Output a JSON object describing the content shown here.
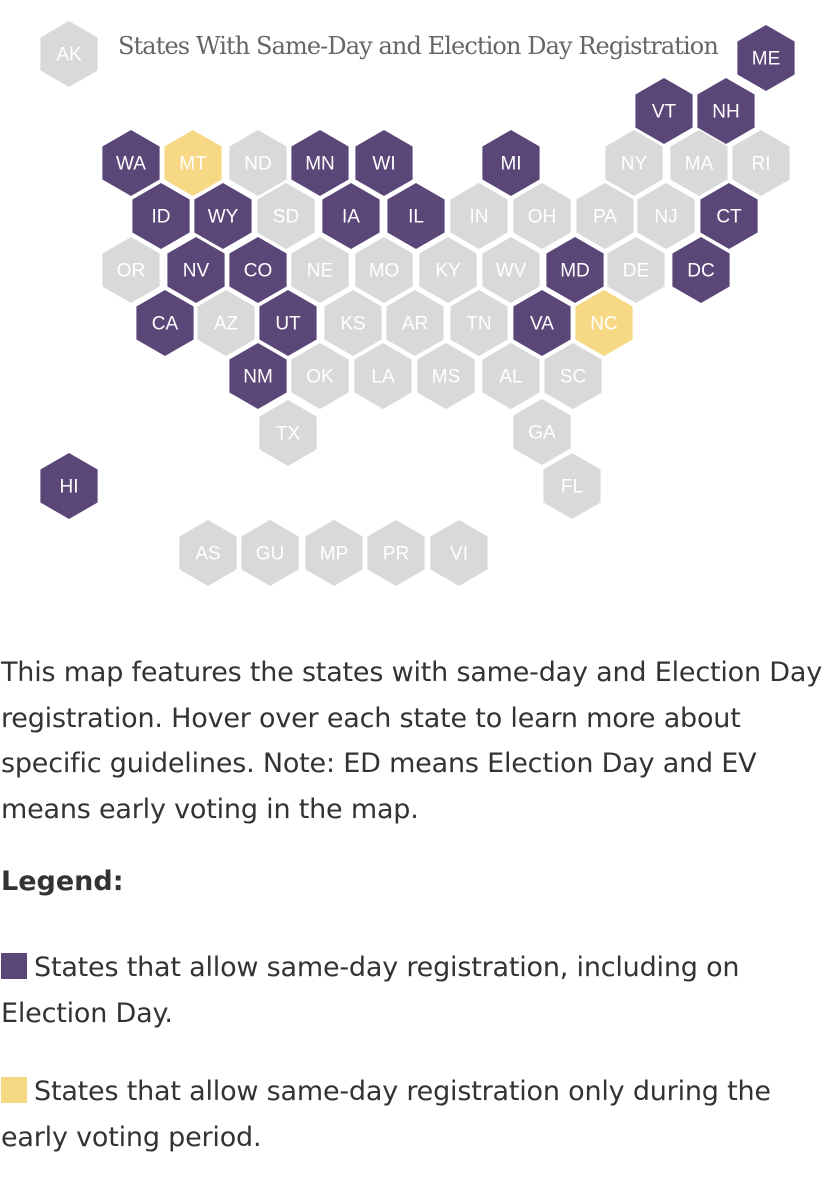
{
  "map": {
    "title": "States With Same-Day and Election Day Registration",
    "colors": {
      "same_day": "#5b4678",
      "early_voting_only": "#f7d885",
      "none": "#d9d9d9",
      "label_on_dark": "#ffffff",
      "label_on_light": "#ffffff"
    },
    "states": [
      {
        "abbr": "AK",
        "cat": "none"
      },
      {
        "abbr": "ME",
        "cat": "same_day"
      },
      {
        "abbr": "VT",
        "cat": "same_day"
      },
      {
        "abbr": "NH",
        "cat": "same_day"
      },
      {
        "abbr": "WA",
        "cat": "same_day"
      },
      {
        "abbr": "MT",
        "cat": "early_voting_only"
      },
      {
        "abbr": "ND",
        "cat": "none"
      },
      {
        "abbr": "MN",
        "cat": "same_day"
      },
      {
        "abbr": "WI",
        "cat": "same_day"
      },
      {
        "abbr": "MI",
        "cat": "same_day"
      },
      {
        "abbr": "NY",
        "cat": "none"
      },
      {
        "abbr": "MA",
        "cat": "none"
      },
      {
        "abbr": "RI",
        "cat": "none"
      },
      {
        "abbr": "ID",
        "cat": "same_day"
      },
      {
        "abbr": "WY",
        "cat": "same_day"
      },
      {
        "abbr": "SD",
        "cat": "none"
      },
      {
        "abbr": "IA",
        "cat": "same_day"
      },
      {
        "abbr": "IL",
        "cat": "same_day"
      },
      {
        "abbr": "IN",
        "cat": "none"
      },
      {
        "abbr": "OH",
        "cat": "none"
      },
      {
        "abbr": "PA",
        "cat": "none"
      },
      {
        "abbr": "NJ",
        "cat": "none"
      },
      {
        "abbr": "CT",
        "cat": "same_day"
      },
      {
        "abbr": "OR",
        "cat": "none"
      },
      {
        "abbr": "NV",
        "cat": "same_day"
      },
      {
        "abbr": "CO",
        "cat": "same_day"
      },
      {
        "abbr": "NE",
        "cat": "none"
      },
      {
        "abbr": "MO",
        "cat": "none"
      },
      {
        "abbr": "KY",
        "cat": "none"
      },
      {
        "abbr": "WV",
        "cat": "none"
      },
      {
        "abbr": "MD",
        "cat": "same_day"
      },
      {
        "abbr": "DE",
        "cat": "none"
      },
      {
        "abbr": "DC",
        "cat": "same_day"
      },
      {
        "abbr": "CA",
        "cat": "same_day"
      },
      {
        "abbr": "AZ",
        "cat": "none"
      },
      {
        "abbr": "UT",
        "cat": "same_day"
      },
      {
        "abbr": "KS",
        "cat": "none"
      },
      {
        "abbr": "AR",
        "cat": "none"
      },
      {
        "abbr": "TN",
        "cat": "none"
      },
      {
        "abbr": "VA",
        "cat": "same_day"
      },
      {
        "abbr": "NC",
        "cat": "early_voting_only"
      },
      {
        "abbr": "NM",
        "cat": "same_day"
      },
      {
        "abbr": "OK",
        "cat": "none"
      },
      {
        "abbr": "LA",
        "cat": "none"
      },
      {
        "abbr": "MS",
        "cat": "none"
      },
      {
        "abbr": "AL",
        "cat": "none"
      },
      {
        "abbr": "SC",
        "cat": "none"
      },
      {
        "abbr": "TX",
        "cat": "none"
      },
      {
        "abbr": "GA",
        "cat": "none"
      },
      {
        "abbr": "HI",
        "cat": "same_day"
      },
      {
        "abbr": "FL",
        "cat": "none"
      },
      {
        "abbr": "AS",
        "cat": "none"
      },
      {
        "abbr": "GU",
        "cat": "none"
      },
      {
        "abbr": "MP",
        "cat": "none"
      },
      {
        "abbr": "PR",
        "cat": "none"
      },
      {
        "abbr": "VI",
        "cat": "none"
      }
    ]
  },
  "description": "This map features the states with same-day and Election Day registration. Hover over each state to learn more about specific guidelines. Note: ED means Election Day and EV means early voting in the map.",
  "legend": {
    "heading": "Legend:",
    "items": [
      {
        "label": "States that allow same-day registration, including on Election Day.",
        "color": "#5b4678"
      },
      {
        "label": "States that allow same-day registration only during the early voting period.",
        "color": "#f7d885"
      }
    ]
  }
}
